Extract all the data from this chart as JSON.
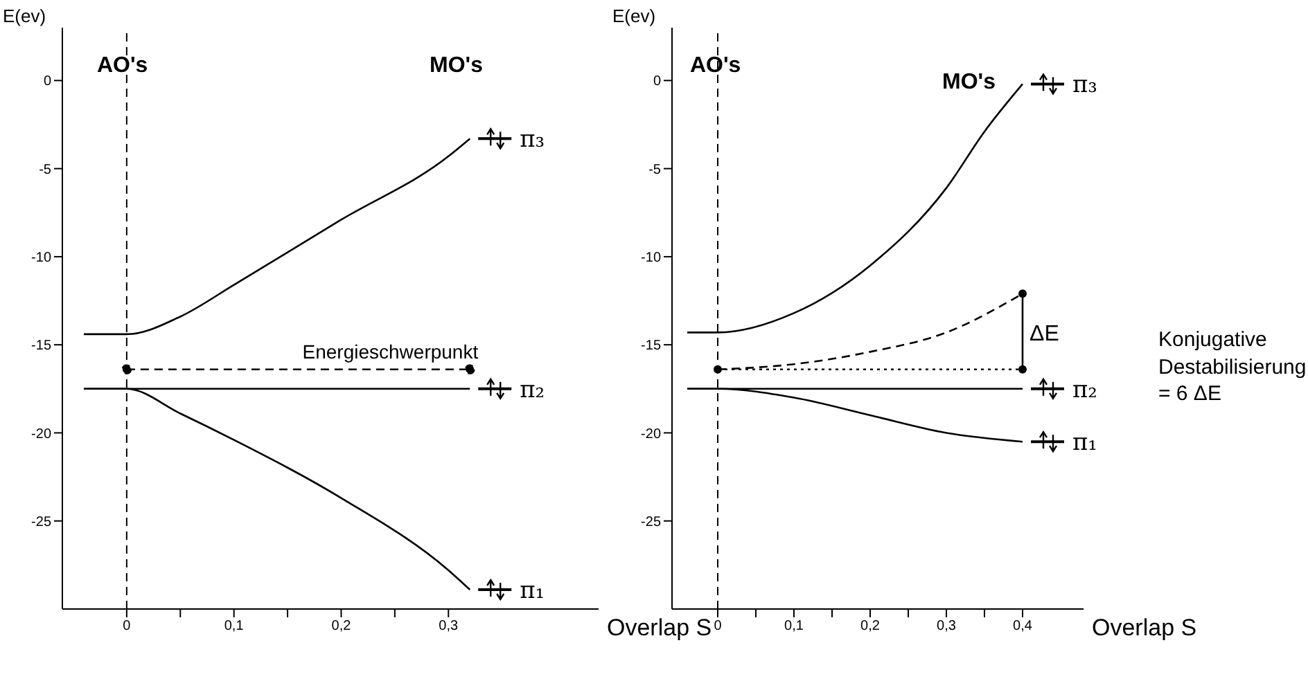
{
  "chart_data": [
    {
      "type": "line",
      "ylabel": "E(ev)",
      "xlabel": "Overlap S",
      "annotations": [
        "AO's",
        "MO's"
      ],
      "xlim": [
        -0.06,
        0.44
      ],
      "ylim": [
        -30,
        3
      ],
      "xticks": [
        0,
        {
          "value": 0.05,
          "label": null
        },
        {
          "value": 0.1,
          "label": "0,1"
        },
        {
          "value": 0.15,
          "label": null
        },
        {
          "value": 0.2,
          "label": "0,2"
        },
        {
          "value": 0.25,
          "label": null
        },
        {
          "value": 0.3,
          "label": "0,3"
        }
      ],
      "yticks": [
        0,
        -5,
        -10,
        -15,
        -20,
        -25
      ],
      "grid": false,
      "legend": "right",
      "ref_lines": [
        {
          "axis": "x",
          "value": 0,
          "line_style": "dashed",
          "color": "#000000"
        }
      ],
      "series": [
        {
          "name": "π₃",
          "color": "#000000",
          "x": [
            -0.04,
            0,
            0.05,
            0.1,
            0.2,
            0.3,
            0.32
          ],
          "values": [
            -14.4,
            -14.4,
            -13.4,
            -11.6,
            -7.9,
            -4.3,
            -3.3
          ]
        },
        {
          "name": "π₂",
          "color": "#000000",
          "x": [
            -0.04,
            0,
            0.32
          ],
          "values": [
            -17.5,
            -17.5,
            -17.5
          ]
        },
        {
          "name": "π₁",
          "color": "#000000",
          "x": [
            -0.04,
            0,
            0.05,
            0.1,
            0.2,
            0.3,
            0.32
          ],
          "values": [
            -17.5,
            -17.5,
            -18.9,
            -20.4,
            -23.7,
            -27.8,
            -28.9
          ]
        },
        {
          "name": "Energieschwerpunkt",
          "color": "#000000",
          "line_style": "dashed",
          "marker": "circle",
          "x": [
            0,
            0.32
          ],
          "values": [
            -16.4,
            -16.4
          ]
        }
      ]
    },
    {
      "type": "line",
      "ylabel": "E(ev)",
      "xlabel": "Overlap S",
      "annotations": [
        "AO's",
        "MO's",
        "Konjugative\nDestabilisierung\n= 6 ΔE",
        {
          "text": "ΔE",
          "x": 0.4,
          "y": -14.3
        }
      ],
      "xlim": [
        -0.06,
        0.48
      ],
      "ylim": [
        -30,
        3
      ],
      "xticks": [
        0,
        {
          "value": 0.05,
          "label": null
        },
        {
          "value": 0.1,
          "label": "0,1"
        },
        {
          "value": 0.15,
          "label": null
        },
        {
          "value": 0.2,
          "label": "0,2"
        },
        {
          "value": 0.25,
          "label": null
        },
        {
          "value": 0.3,
          "label": "0,3"
        },
        {
          "value": 0.35,
          "label": null
        },
        {
          "value": 0.4,
          "label": "0,4"
        }
      ],
      "yticks": [
        0,
        -5,
        -10,
        -15,
        -20,
        -25
      ],
      "grid": false,
      "legend": "right",
      "ref_lines": [
        {
          "axis": "x",
          "value": 0,
          "line_style": "dashed",
          "color": "#000000"
        }
      ],
      "series": [
        {
          "name": "π₃",
          "color": "#000000",
          "x": [
            -0.04,
            0,
            0.1,
            0.2,
            0.3,
            0.35,
            0.4
          ],
          "values": [
            -14.3,
            -14.3,
            -13.2,
            -10.5,
            -6.1,
            -2.9,
            -0.2
          ]
        },
        {
          "name": "π₂",
          "color": "#000000",
          "x": [
            -0.04,
            0,
            0.4
          ],
          "values": [
            -17.5,
            -17.5,
            -17.5
          ]
        },
        {
          "name": "π₁",
          "color": "#000000",
          "x": [
            -0.04,
            0,
            0.1,
            0.2,
            0.3,
            0.4
          ],
          "values": [
            -17.5,
            -17.5,
            -18.0,
            -19.0,
            -20.0,
            -20.5
          ]
        },
        {
          "color": "#000000",
          "line_style": "dashed",
          "x": [
            0,
            0.1,
            0.2,
            0.3,
            0.4
          ],
          "values": [
            -16.4,
            -16.1,
            -15.4,
            -14.3,
            -12.1
          ]
        },
        {
          "color": "#000000",
          "line_style": "dotted",
          "x": [
            0,
            0.4
          ],
          "values": [
            -16.4,
            -16.4
          ]
        },
        {
          "color": "#000000",
          "x": [
            0.4,
            0.4
          ],
          "values": [
            -12.1,
            -16.4
          ]
        },
        {
          "type": "scatter",
          "color": "#000000",
          "marker": "circle",
          "x": [
            0,
            0.4,
            0.4
          ],
          "values": [
            -16.4,
            -12.1,
            -16.4
          ]
        }
      ]
    }
  ]
}
